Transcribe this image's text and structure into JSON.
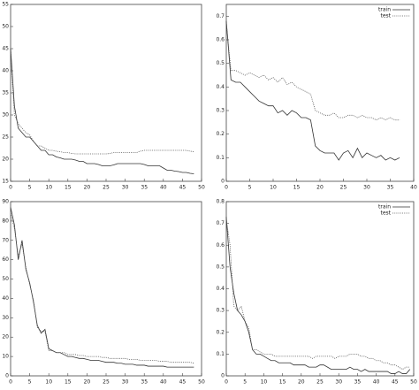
{
  "chart_data": [
    {
      "type": "line",
      "x": [
        0,
        1,
        2,
        3,
        4,
        5,
        6,
        7,
        8,
        9,
        10,
        11,
        12,
        13,
        14,
        15,
        16,
        17,
        18,
        19,
        20,
        21,
        22,
        23,
        24,
        25,
        26,
        27,
        28,
        29,
        30,
        31,
        32,
        33,
        34,
        35,
        36,
        37,
        38,
        39,
        40,
        41,
        42,
        43,
        44,
        45,
        46,
        47,
        48
      ],
      "series": [
        {
          "color": "#333333",
          "style": "solid",
          "values": [
            45,
            32,
            27,
            26,
            25,
            25,
            24,
            23,
            22,
            22,
            21,
            21,
            20.5,
            20.3,
            20,
            20,
            20,
            19.8,
            19.5,
            19.5,
            19,
            19,
            19,
            18.8,
            18.5,
            18.5,
            18.5,
            18.7,
            19,
            19,
            19,
            19,
            19,
            19,
            19,
            18.8,
            18.5,
            18.5,
            18.5,
            18.5,
            18,
            17.5,
            17.5,
            17.3,
            17.2,
            17,
            17,
            16.8,
            16.7
          ]
        },
        {
          "color": "#555555",
          "style": "dotted",
          "values": [
            44,
            30,
            28,
            27,
            26,
            25.5,
            24,
            23,
            23,
            22.5,
            22,
            22,
            21.8,
            21.7,
            21.5,
            21.5,
            21.3,
            21.2,
            21.2,
            21.2,
            21.2,
            21.2,
            21.2,
            21.2,
            21.2,
            21.2,
            21.3,
            21.5,
            21.5,
            21.5,
            21.5,
            21.5,
            21.5,
            21.5,
            21.8,
            22,
            22,
            22,
            22,
            22,
            22,
            22,
            22,
            22,
            22,
            22,
            22,
            21.8,
            21.7
          ]
        }
      ],
      "xlim": [
        0,
        50
      ],
      "ylim": [
        15,
        55
      ],
      "xticks": [
        0,
        5,
        10,
        15,
        20,
        25,
        30,
        35,
        40,
        45,
        50
      ],
      "yticks": [
        15,
        20,
        25,
        30,
        35,
        40,
        45,
        50,
        55
      ]
    },
    {
      "type": "line",
      "x": [
        0,
        1,
        2,
        3,
        4,
        5,
        6,
        7,
        8,
        9,
        10,
        11,
        12,
        13,
        14,
        15,
        16,
        17,
        18,
        19,
        20,
        21,
        22,
        23,
        24,
        25,
        26,
        27,
        28,
        29,
        30,
        31,
        32,
        33,
        34,
        35,
        36,
        37
      ],
      "series": [
        {
          "name": "train",
          "color": "#333333",
          "style": "solid",
          "values": [
            0.68,
            0.43,
            0.42,
            0.42,
            0.4,
            0.38,
            0.36,
            0.34,
            0.33,
            0.32,
            0.32,
            0.29,
            0.3,
            0.28,
            0.3,
            0.29,
            0.27,
            0.27,
            0.26,
            0.15,
            0.13,
            0.12,
            0.12,
            0.12,
            0.09,
            0.12,
            0.13,
            0.1,
            0.14,
            0.1,
            0.12,
            0.11,
            0.1,
            0.11,
            0.09,
            0.1,
            0.09,
            0.1
          ]
        },
        {
          "name": "test",
          "color": "#555555",
          "style": "dotted",
          "values": [
            0.67,
            0.47,
            0.47,
            0.46,
            0.45,
            0.46,
            0.45,
            0.44,
            0.45,
            0.43,
            0.44,
            0.42,
            0.44,
            0.41,
            0.42,
            0.4,
            0.39,
            0.38,
            0.37,
            0.3,
            0.29,
            0.28,
            0.28,
            0.29,
            0.27,
            0.27,
            0.28,
            0.28,
            0.27,
            0.28,
            0.27,
            0.27,
            0.26,
            0.27,
            0.26,
            0.27,
            0.26,
            0.26
          ]
        }
      ],
      "xlim": [
        0,
        40
      ],
      "ylim": [
        0,
        0.75
      ],
      "xticks": [
        0,
        5,
        10,
        15,
        20,
        25,
        30,
        35,
        40
      ],
      "yticks": [
        0,
        0.1,
        0.2,
        0.3,
        0.4,
        0.5,
        0.6,
        0.7
      ],
      "legend": "top-right"
    },
    {
      "type": "line",
      "x": [
        0,
        1,
        2,
        3,
        4,
        5,
        6,
        7,
        8,
        9,
        10,
        11,
        12,
        13,
        14,
        15,
        16,
        17,
        18,
        19,
        20,
        21,
        22,
        23,
        24,
        25,
        26,
        27,
        28,
        29,
        30,
        31,
        32,
        33,
        34,
        35,
        36,
        37,
        38,
        39,
        40,
        41,
        42,
        43,
        44,
        45,
        46,
        47,
        48
      ],
      "series": [
        {
          "color": "#333333",
          "style": "solid",
          "values": [
            87,
            78,
            60,
            70,
            55,
            48,
            38,
            26,
            22,
            24,
            14,
            13,
            12,
            12,
            11,
            10,
            10,
            9.5,
            9,
            9,
            8.5,
            8,
            8,
            8,
            7.5,
            7,
            7,
            7,
            6.5,
            6.5,
            6,
            6,
            6,
            5.5,
            5.5,
            5.5,
            5,
            5,
            5,
            5,
            5,
            4.5,
            4.5,
            4.5,
            4.5,
            4.5,
            4.5,
            4.5,
            4.5
          ]
        },
        {
          "color": "#555555",
          "style": "dotted",
          "values": [
            84,
            76,
            62,
            68,
            56,
            47,
            39,
            25,
            23,
            23,
            13,
            13,
            12,
            12,
            12,
            11,
            11,
            11,
            10.5,
            10.5,
            10,
            10,
            10,
            10,
            9.5,
            9.5,
            9,
            9,
            9,
            9,
            9,
            8.5,
            8.5,
            8.5,
            8,
            8,
            8,
            8,
            8,
            7.5,
            7.5,
            7.5,
            7,
            7,
            7,
            7,
            7,
            7,
            6.5
          ]
        }
      ],
      "xlim": [
        0,
        50
      ],
      "ylim": [
        0,
        90
      ],
      "xticks": [
        0,
        5,
        10,
        15,
        20,
        25,
        30,
        35,
        40,
        45,
        50
      ],
      "yticks": [
        0,
        10,
        20,
        30,
        40,
        50,
        60,
        70,
        80,
        90
      ]
    },
    {
      "type": "line",
      "x": [
        0,
        1,
        2,
        3,
        4,
        5,
        6,
        7,
        8,
        9,
        10,
        11,
        12,
        13,
        14,
        15,
        16,
        17,
        18,
        19,
        20,
        21,
        22,
        23,
        24,
        25,
        26,
        27,
        28,
        29,
        30,
        31,
        32,
        33,
        34,
        35,
        36,
        37,
        38,
        39,
        40,
        41,
        42,
        43,
        44,
        45,
        46,
        47,
        48,
        49
      ],
      "series": [
        {
          "name": "train",
          "color": "#333333",
          "style": "solid",
          "values": [
            0.73,
            0.5,
            0.38,
            0.3,
            0.28,
            0.25,
            0.2,
            0.12,
            0.1,
            0.1,
            0.09,
            0.08,
            0.07,
            0.07,
            0.06,
            0.06,
            0.06,
            0.06,
            0.05,
            0.05,
            0.05,
            0.05,
            0.04,
            0.04,
            0.04,
            0.05,
            0.05,
            0.04,
            0.03,
            0.03,
            0.03,
            0.03,
            0.03,
            0.04,
            0.03,
            0.03,
            0.02,
            0.03,
            0.02,
            0.02,
            0.02,
            0.02,
            0.02,
            0.02,
            0.01,
            0.01,
            0.02,
            0.01,
            0.01,
            0.03
          ]
        },
        {
          "name": "test",
          "color": "#555555",
          "style": "dotted",
          "values": [
            0.72,
            0.6,
            0.32,
            0.3,
            0.32,
            0.25,
            0.22,
            0.12,
            0.12,
            0.11,
            0.1,
            0.1,
            0.1,
            0.09,
            0.09,
            0.09,
            0.09,
            0.09,
            0.09,
            0.09,
            0.09,
            0.09,
            0.09,
            0.08,
            0.09,
            0.09,
            0.09,
            0.09,
            0.09,
            0.08,
            0.09,
            0.09,
            0.09,
            0.1,
            0.1,
            0.1,
            0.09,
            0.09,
            0.08,
            0.08,
            0.07,
            0.07,
            0.06,
            0.06,
            0.05,
            0.05,
            0.04,
            0.03,
            0.04,
            0.04
          ]
        }
      ],
      "xlim": [
        0,
        50
      ],
      "ylim": [
        0,
        0.8
      ],
      "xticks": [
        0,
        5,
        10,
        15,
        20,
        25,
        30,
        35,
        40,
        45,
        50
      ],
      "yticks": [
        0,
        0.1,
        0.2,
        0.3,
        0.4,
        0.5,
        0.6,
        0.7,
        0.8
      ],
      "legend": "top-right"
    }
  ]
}
